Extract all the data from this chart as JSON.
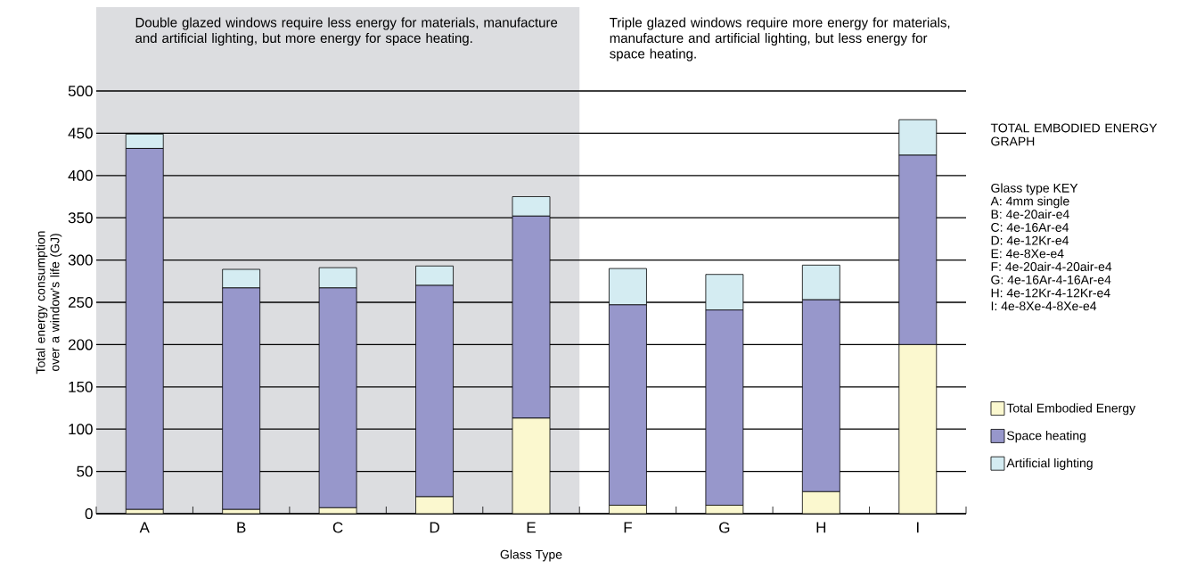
{
  "chart_data": {
    "type": "bar",
    "stacked": true,
    "title": "TOTAL EMBODIED ENERGY GRAPH",
    "xlabel": "Glass Type",
    "ylabel": "Total energy consumption over a window’s life (GJ)",
    "categories": [
      "A",
      "B",
      "C",
      "D",
      "E",
      "F",
      "G",
      "H",
      "I"
    ],
    "series": [
      {
        "name": "Total Embodied Energy",
        "color": "#fbf8cf",
        "values": [
          5,
          5,
          7,
          20,
          113,
          10,
          10,
          26,
          200
        ]
      },
      {
        "name": "Space heating",
        "color": "#9797cb",
        "values": [
          427,
          262,
          260,
          250,
          239,
          237,
          231,
          227,
          224
        ]
      },
      {
        "name": "Artificial lighting",
        "color": "#d4ecf2",
        "values": [
          17,
          22,
          24,
          23,
          23,
          43,
          42,
          41,
          42
        ]
      }
    ],
    "ylim": [
      0,
      500
    ],
    "yticks": [
      0,
      50,
      100,
      150,
      200,
      250,
      300,
      350,
      400,
      450,
      500
    ],
    "grid": "y",
    "legend": "right",
    "bands": [
      {
        "axis": "x",
        "from": "A",
        "to": "E",
        "color": "#dcdde0"
      }
    ],
    "annotations": [
      "Double glazed windows require less energy for materials, manufacture and artificial lighting, but more energy for space heating.",
      "Triple glazed windows require more energy for materials, manufacture and artificial lighting, but less energy for space heating.",
      "Glass type KEY",
      "A:  4mm single",
      "B:  4e-20air-e4",
      "C:  4e-16Ar-e4",
      "D:  4e-12Kr-e4",
      "E:  4e-8Xe-e4",
      "F:  4e-20air-4-20air-e4",
      "G:  4e-16Ar-4-16Ar-e4",
      "H:  4e-12Kr-4-12Kr-e4",
      "I:  4e-8Xe-4-8Xe-e4"
    ]
  }
}
